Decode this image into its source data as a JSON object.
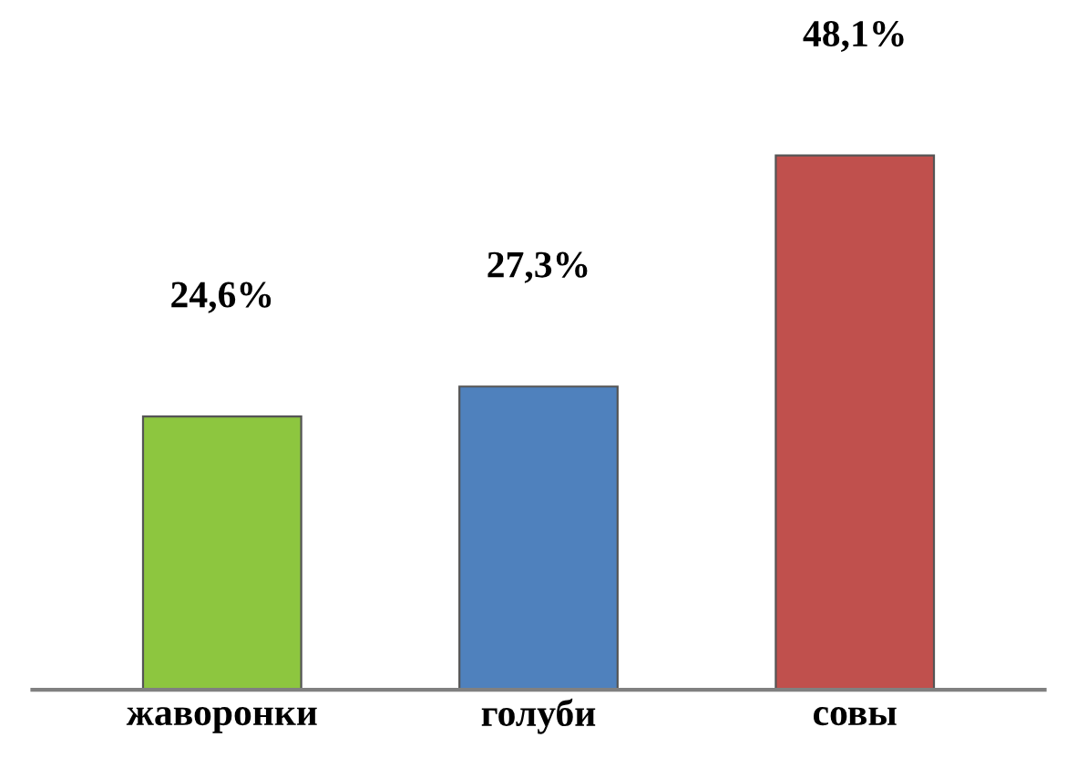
{
  "chart_data": {
    "type": "bar",
    "categories": [
      "жаворонки",
      "голуби",
      "совы"
    ],
    "values": [
      24.6,
      27.3,
      48.1
    ],
    "colors": [
      "#8dc63f",
      "#4f81bd",
      "#c0504d"
    ],
    "value_labels": [
      "24,6%",
      "27,3%",
      "48,1%"
    ]
  }
}
